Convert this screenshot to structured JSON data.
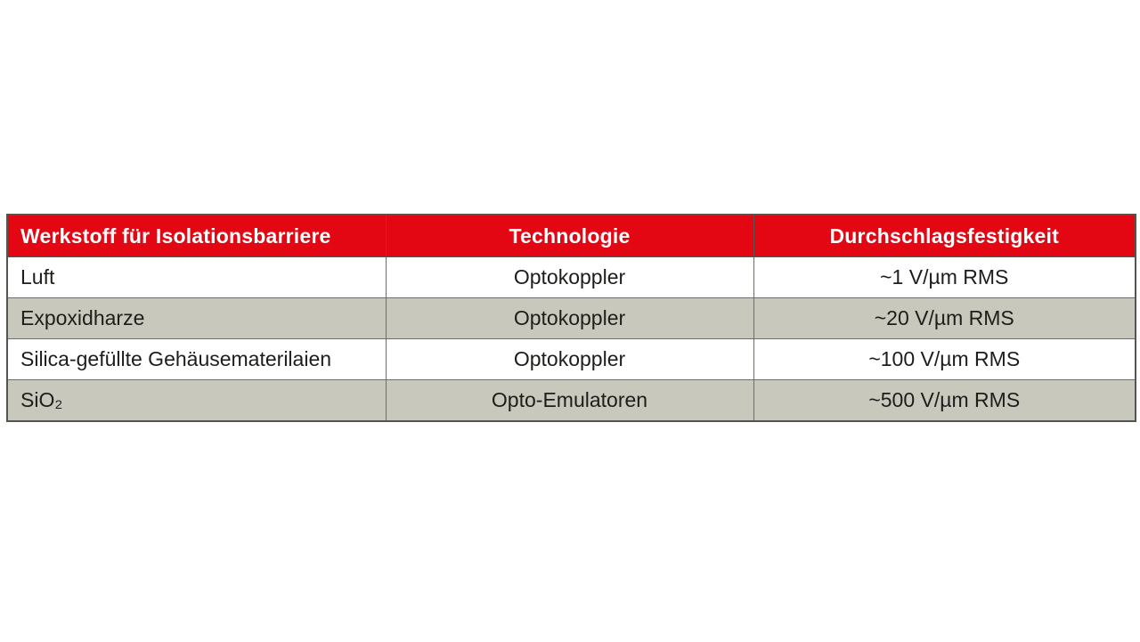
{
  "table": {
    "headers": [
      "Werkstoff für Isolationsbarriere",
      "Technologie",
      "Durchschlagsfestigkeit"
    ],
    "rows": [
      [
        "Luft",
        "Optokoppler",
        "~1 V/µm RMS"
      ],
      [
        "Expoxidharze",
        "Optokoppler",
        "~20 V/µm RMS"
      ],
      [
        "Silica-gefüllte Gehäusematerilaien",
        "Optokoppler",
        "~100 V/µm RMS"
      ],
      [
        "SiO₂",
        "Opto-Emulatoren",
        "~500 V/µm RMS"
      ]
    ],
    "colors": {
      "header_bg": "#e30613",
      "header_text": "#ffffff",
      "row_bg": "#ffffff",
      "row_alt_bg": "#c9c8bc",
      "border": "#55544f",
      "cell_text": "#1d1d1b"
    }
  }
}
